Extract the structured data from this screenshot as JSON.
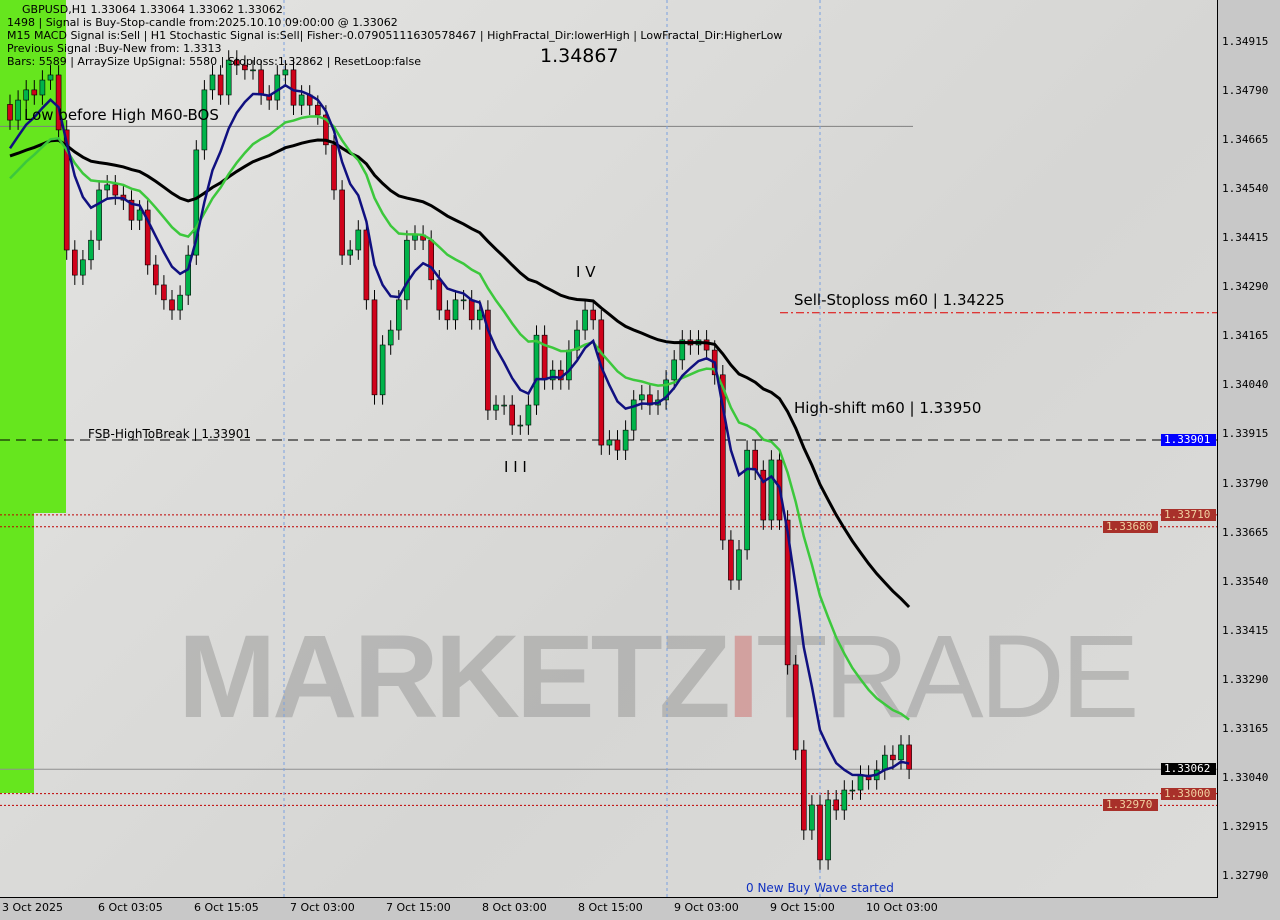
{
  "header": {
    "line1": "GBPUSD,H1  1.33064 1.33064 1.33062 1.33062",
    "line2": "1498 | Signal is Buy-Stop-candle from:2025.10.10 09:00:00 @ 1.33062",
    "line3": "M15 MACD Signal is:Sell | H1 Stochastic Signal is:Sell| Fisher:-0.07905111630578467 | HighFractal_Dir:lowerHigh | LowFractal_Dir:HigherLow",
    "line4": "Previous Signal :Buy-New from: 1.3313",
    "line5": "Bars: 5589 | ArraySize UpSignal: 5580 | Stoploss:1.32862 | ResetLoop:false"
  },
  "annotations": {
    "high_label": "1.34867",
    "low_before_high": "Low before High   M60-BOS",
    "fsb": "FSB-HighToBreak | 1.33901",
    "sell_stoploss": "Sell-Stoploss m60 | 1.34225",
    "high_shift": "High-shift m60 | 1.33950",
    "wave_iv": "I V",
    "wave_iii": "I I I",
    "new_wave": "0 New Buy Wave started"
  },
  "watermark": {
    "a": "MARKETZ",
    "b": "I",
    "c": "TRADE"
  },
  "colors": {
    "bull": "#00b34a",
    "bear": "#d0021b",
    "ma_slow": "#000000",
    "ma_mid": "#3cc83c",
    "ma_fast": "#101080",
    "signal_bg": "#66e61e",
    "fsb_tag": "#0000ff",
    "level_tag": "#a8302a",
    "price_tag": "#000000"
  },
  "chart_data": {
    "type": "candlestick",
    "symbol": "GBPUSD",
    "timeframe": "H1",
    "ylim": [
      1.3273,
      1.35
    ],
    "y_ticks": [
      "1.34915",
      "1.34790",
      "1.34665",
      "1.34540",
      "1.34415",
      "1.34290",
      "1.34165",
      "1.34040",
      "1.33915",
      "1.33790",
      "1.33665",
      "1.33540",
      "1.33415",
      "1.33290",
      "1.33165",
      "1.33040",
      "1.32915",
      "1.32790"
    ],
    "x_ticks": [
      "3 Oct 2025",
      "6 Oct 03:05",
      "6 Oct 15:05",
      "7 Oct 03:00",
      "7 Oct 15:00",
      "8 Oct 03:00",
      "8 Oct 15:00",
      "9 Oct 03:00",
      "9 Oct 15:00",
      "10 Oct 03:00"
    ],
    "closes": [
      1.34716,
      1.34767,
      1.34793,
      1.3478,
      1.34818,
      1.34831,
      1.34691,
      1.34385,
      1.34321,
      1.3436,
      1.3441,
      1.34538,
      1.34551,
      1.34525,
      1.34512,
      1.34461,
      1.34487,
      1.34347,
      1.34296,
      1.34258,
      1.34232,
      1.3427,
      1.34372,
      1.3464,
      1.34793,
      1.34831,
      1.3478,
      1.34869,
      1.34856,
      1.34844,
      1.34844,
      1.3478,
      1.34767,
      1.34831,
      1.34844,
      1.34754,
      1.3478,
      1.34754,
      1.34729,
      1.34653,
      1.34538,
      1.34372,
      1.34385,
      1.34436,
      1.34258,
      1.34016,
      1.34143,
      1.34181,
      1.34258,
      1.3441,
      1.34423,
      1.3441,
      1.34309,
      1.34232,
      1.34207,
      1.34258,
      1.34258,
      1.34207,
      1.34232,
      1.33977,
      1.3399,
      1.3399,
      1.33939,
      1.33939,
      1.3399,
      1.34168,
      1.34054,
      1.34079,
      1.34054,
      1.3413,
      1.34181,
      1.34232,
      1.34207,
      1.33888,
      1.33901,
      1.33875,
      1.33926,
      1.34003,
      1.34016,
      1.3399,
      1.34003,
      1.34054,
      1.34105,
      1.34156,
      1.34143,
      1.34156,
      1.3413,
      1.34067,
      1.33646,
      1.33544,
      1.33621,
      1.33875,
      1.33824,
      1.33697,
      1.3385,
      1.33697,
      1.33328,
      1.33111,
      1.32907,
      1.32971,
      1.32831,
      1.32984,
      1.32958,
      1.33009,
      1.33009,
      1.33047,
      1.33035,
      1.3306,
      1.33098,
      1.33086,
      1.33124,
      1.33062
    ],
    "levels": [
      {
        "name": "FSB-HighToBreak",
        "price": 1.33901,
        "style": "dashed",
        "color": "#000000"
      },
      {
        "name": "Sell-Stoploss m60",
        "price": 1.34225,
        "style": "dashdot",
        "color": "#e00000"
      },
      {
        "name": "Low before High M60-BOS",
        "price": 1.347,
        "style": "solid",
        "color": "#808080"
      },
      {
        "name": "level",
        "price": 1.3371,
        "style": "dotted",
        "color": "#c00000"
      },
      {
        "name": "level",
        "price": 1.3368,
        "style": "dotted",
        "color": "#c00000"
      },
      {
        "name": "level",
        "price": 1.33,
        "style": "dotted",
        "color": "#c00000"
      },
      {
        "name": "level",
        "price": 1.3297,
        "style": "dotted",
        "color": "#c00000"
      },
      {
        "name": "current",
        "price": 1.33062,
        "style": "solid",
        "color": "#909090"
      }
    ],
    "price_tags": [
      {
        "text": "1.33901",
        "price": 1.33901,
        "kind": "fsb"
      },
      {
        "text": "1.33710",
        "price": 1.3371,
        "kind": "level"
      },
      {
        "text": "1.33680",
        "price": 1.3368,
        "kind": "level"
      },
      {
        "text": "1.33062",
        "price": 1.33062,
        "kind": "price"
      },
      {
        "text": "1.33000",
        "price": 1.33,
        "kind": "level"
      },
      {
        "text": "1.32970",
        "price": 1.3297,
        "kind": "level"
      }
    ]
  }
}
